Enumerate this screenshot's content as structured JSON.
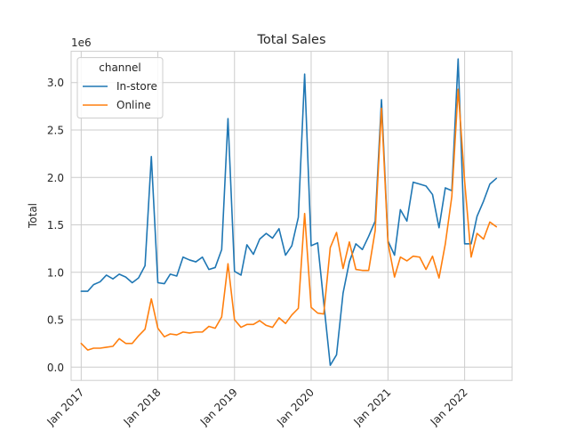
{
  "chart_data": {
    "type": "line",
    "title": "Total Sales",
    "ylabel": "Total",
    "xlabel": "",
    "y_offset_label": "1e6",
    "ylim": [
      -0.14,
      3.33
    ],
    "yticks": [
      0.0,
      0.5,
      1.0,
      1.5,
      2.0,
      2.5,
      3.0
    ],
    "ytick_labels": [
      "0.0",
      "0.5",
      "1.0",
      "1.5",
      "2.0",
      "2.5",
      "3.0"
    ],
    "xlim": [
      "2016-11-14",
      "2022-08-15"
    ],
    "xticks": [
      "2017-01-01",
      "2018-01-01",
      "2019-01-01",
      "2020-01-01",
      "2021-01-01",
      "2022-01-01"
    ],
    "xtick_labels": [
      "Jan 2017",
      "Jan 2018",
      "Jan 2019",
      "Jan 2020",
      "Jan 2021",
      "Jan 2022"
    ],
    "grid": true,
    "legend": {
      "title": "channel",
      "placement": "top-left"
    },
    "x": [
      "2017-01",
      "2017-02",
      "2017-03",
      "2017-04",
      "2017-05",
      "2017-06",
      "2017-07",
      "2017-08",
      "2017-09",
      "2017-10",
      "2017-11",
      "2017-12",
      "2018-01",
      "2018-02",
      "2018-03",
      "2018-04",
      "2018-05",
      "2018-06",
      "2018-07",
      "2018-08",
      "2018-09",
      "2018-10",
      "2018-11",
      "2018-12",
      "2019-01",
      "2019-02",
      "2019-03",
      "2019-04",
      "2019-05",
      "2019-06",
      "2019-07",
      "2019-08",
      "2019-09",
      "2019-10",
      "2019-11",
      "2019-12",
      "2020-01",
      "2020-02",
      "2020-03",
      "2020-04",
      "2020-05",
      "2020-06",
      "2020-07",
      "2020-08",
      "2020-09",
      "2020-10",
      "2020-11",
      "2020-12",
      "2021-01",
      "2021-02",
      "2021-03",
      "2021-04",
      "2021-05",
      "2021-06",
      "2021-07",
      "2021-08",
      "2021-09",
      "2021-10",
      "2021-11",
      "2021-12",
      "2022-01",
      "2022-02",
      "2022-03",
      "2022-04",
      "2022-05",
      "2022-06",
      "2022-07"
    ],
    "series": [
      {
        "name": "In-store",
        "color": "#1f77b4",
        "values": [
          0.8,
          0.8,
          0.87,
          0.9,
          0.97,
          0.93,
          0.98,
          0.95,
          0.89,
          0.94,
          1.07,
          2.22,
          0.89,
          0.88,
          0.98,
          0.96,
          1.16,
          1.13,
          1.11,
          1.16,
          1.03,
          1.05,
          1.24,
          2.62,
          1.01,
          0.97,
          1.29,
          1.19,
          1.35,
          1.41,
          1.36,
          1.46,
          1.18,
          1.28,
          1.58,
          3.09,
          1.28,
          1.31,
          0.68,
          0.02,
          0.13,
          0.78,
          1.11,
          1.3,
          1.24,
          1.38,
          1.54,
          2.82,
          1.33,
          1.18,
          1.66,
          1.54,
          1.95,
          1.93,
          1.91,
          1.82,
          1.47,
          1.89,
          1.86,
          3.25,
          1.3,
          1.3,
          1.59,
          1.75,
          1.93,
          1.99,
          null
        ]
      },
      {
        "name": "Online",
        "color": "#ff7f0e",
        "values": [
          0.25,
          0.18,
          0.2,
          0.2,
          0.21,
          0.22,
          0.3,
          0.25,
          0.25,
          0.33,
          0.4,
          0.72,
          0.41,
          0.32,
          0.35,
          0.34,
          0.37,
          0.36,
          0.37,
          0.37,
          0.43,
          0.41,
          0.53,
          1.09,
          0.5,
          0.42,
          0.45,
          0.45,
          0.49,
          0.44,
          0.42,
          0.52,
          0.46,
          0.55,
          0.62,
          1.62,
          0.63,
          0.57,
          0.56,
          1.26,
          1.42,
          1.04,
          1.32,
          1.03,
          1.02,
          1.02,
          1.44,
          2.73,
          1.31,
          0.95,
          1.16,
          1.12,
          1.17,
          1.16,
          1.03,
          1.17,
          0.94,
          1.3,
          1.8,
          2.93,
          1.96,
          1.16,
          1.41,
          1.35,
          1.53,
          1.48,
          null
        ]
      }
    ]
  }
}
